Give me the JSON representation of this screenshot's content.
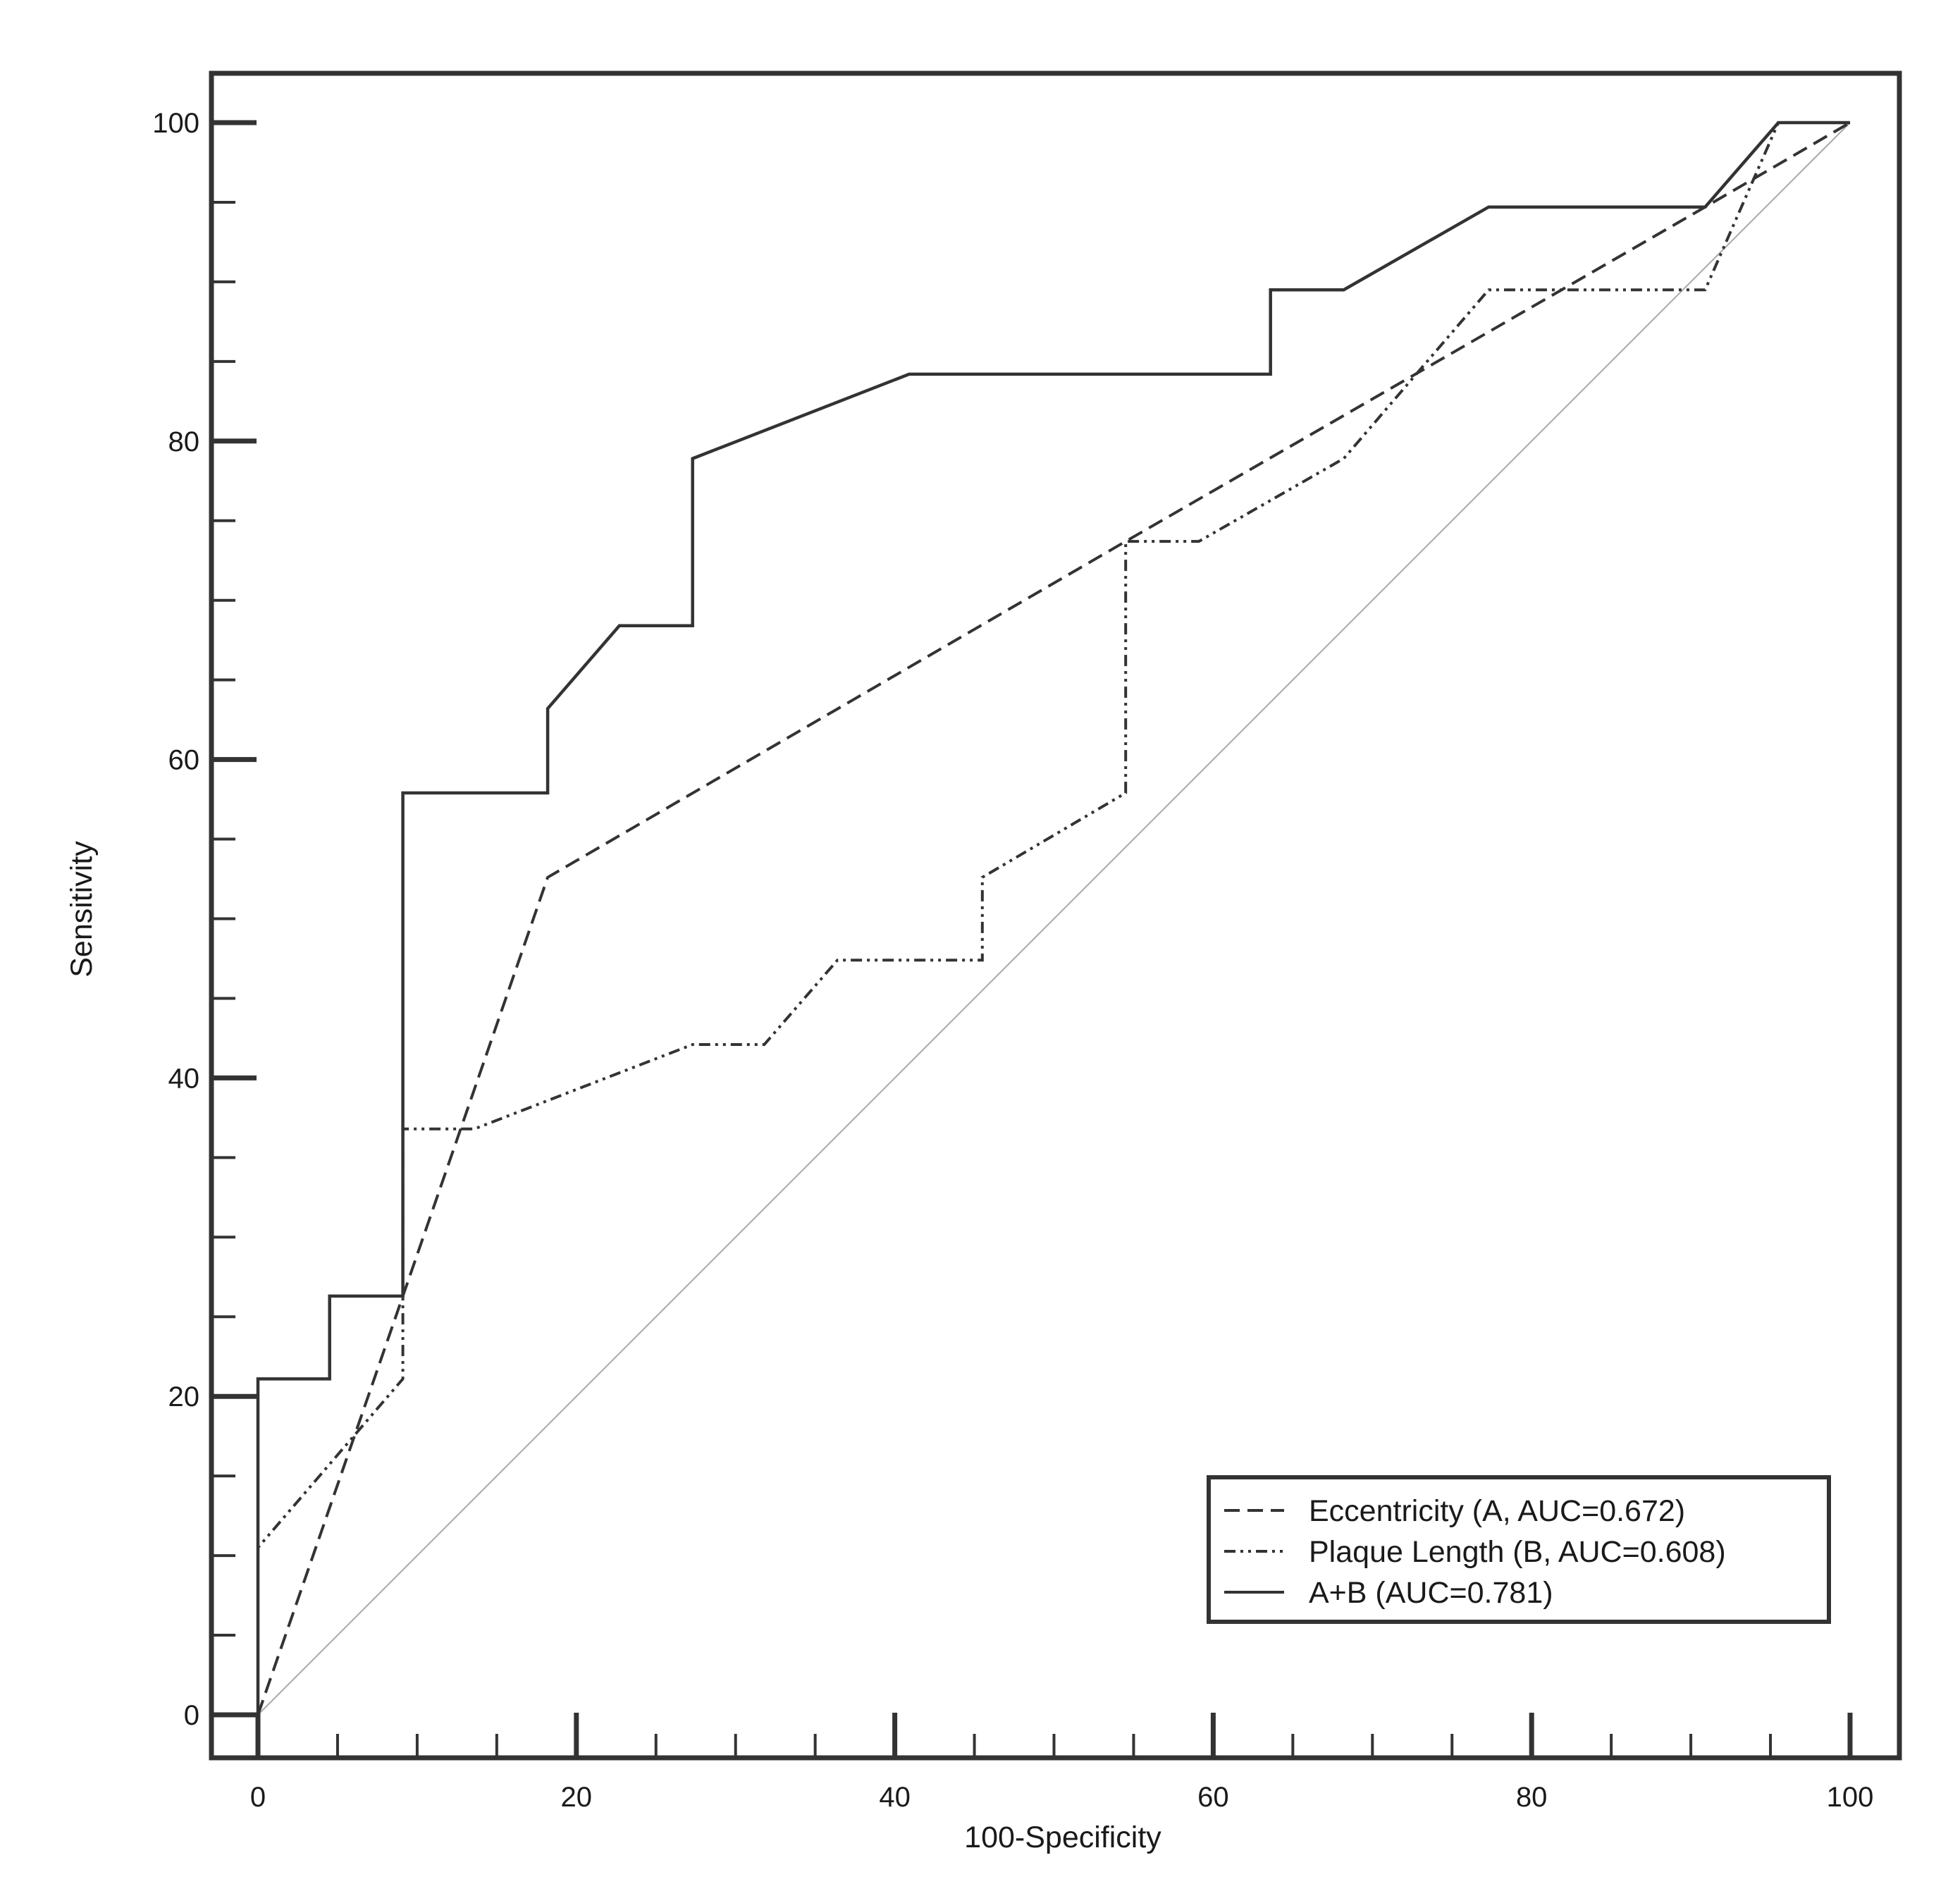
{
  "chart_data": {
    "type": "line",
    "title": "",
    "xlabel": "100-Specificity",
    "ylabel": "Sensitivity",
    "xlim": [
      0,
      100
    ],
    "ylim": [
      0,
      100
    ],
    "x_ticks": [
      0,
      20,
      40,
      60,
      80,
      100
    ],
    "x_tick_labels": [
      "0",
      "20",
      "40",
      "60",
      "80",
      "100"
    ],
    "y_ticks": [
      0,
      20,
      40,
      60,
      80,
      100
    ],
    "y_tick_labels": [
      "0",
      "20",
      "40",
      "60",
      "80",
      "100"
    ],
    "minor_tick_step": 5,
    "grid": false,
    "legend_position": "bottom-right",
    "reference_line": {
      "x": [
        0,
        100
      ],
      "y": [
        0,
        100
      ],
      "color": "#a8a8a8"
    },
    "series": [
      {
        "name": "Eccentricity (A, AUC=0.672)",
        "style": "dashed",
        "color": "#333333",
        "points": [
          [
            0,
            0
          ],
          [
            9.1,
            26.3
          ],
          [
            18.2,
            52.6
          ],
          [
            54.5,
            73.7
          ],
          [
            90.9,
            94.7
          ],
          [
            100,
            100
          ]
        ]
      },
      {
        "name": "Plaque Length (B, AUC=0.608)",
        "style": "dash-dot-dot",
        "color": "#333333",
        "points": [
          [
            0,
            0
          ],
          [
            0,
            10.5
          ],
          [
            9.1,
            21.1
          ],
          [
            9.1,
            36.8
          ],
          [
            13.6,
            36.8
          ],
          [
            27.3,
            42.1
          ],
          [
            31.8,
            42.1
          ],
          [
            36.4,
            47.4
          ],
          [
            45.5,
            47.4
          ],
          [
            45.5,
            52.6
          ],
          [
            54.5,
            57.9
          ],
          [
            54.5,
            73.7
          ],
          [
            59.1,
            73.7
          ],
          [
            68.2,
            78.9
          ],
          [
            77.3,
            89.5
          ],
          [
            90.9,
            89.5
          ],
          [
            95.5,
            100
          ],
          [
            100,
            100
          ]
        ]
      },
      {
        "name": "A+B  (AUC=0.781)",
        "style": "solid",
        "color": "#333333",
        "points": [
          [
            0,
            0
          ],
          [
            0,
            21.1
          ],
          [
            4.5,
            21.1
          ],
          [
            4.5,
            26.3
          ],
          [
            9.1,
            26.3
          ],
          [
            9.1,
            57.9
          ],
          [
            18.2,
            57.9
          ],
          [
            18.2,
            63.2
          ],
          [
            22.7,
            68.4
          ],
          [
            27.3,
            68.4
          ],
          [
            27.3,
            78.9
          ],
          [
            40.9,
            84.2
          ],
          [
            63.6,
            84.2
          ],
          [
            63.6,
            89.5
          ],
          [
            68.2,
            89.5
          ],
          [
            77.3,
            94.7
          ],
          [
            90.9,
            94.7
          ],
          [
            95.5,
            100
          ],
          [
            100,
            100
          ]
        ]
      }
    ]
  }
}
